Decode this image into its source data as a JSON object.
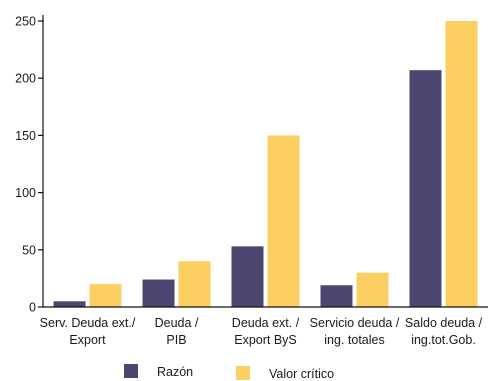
{
  "chart_data": {
    "type": "bar",
    "categories": [
      [
        "Serv. Deuda ext./",
        "Export"
      ],
      [
        "Deuda /",
        "PIB"
      ],
      [
        "Deuda ext. /",
        "Export ByS"
      ],
      [
        "Servicio deuda /",
        "ing. totales"
      ],
      [
        "Saldo deuda /",
        "ing.tot.Gob."
      ]
    ],
    "series": [
      {
        "name": "Razón",
        "color": "#4d4670",
        "values": [
          5,
          24,
          53,
          19,
          207
        ]
      },
      {
        "name": "Valor crítico",
        "color": "#fccf63",
        "values": [
          20,
          40,
          150,
          30,
          250
        ]
      }
    ],
    "ylim": [
      0,
      250
    ],
    "yticks": [
      0,
      50,
      100,
      150,
      200,
      250
    ],
    "grid": false,
    "legend_position": "bottom"
  }
}
